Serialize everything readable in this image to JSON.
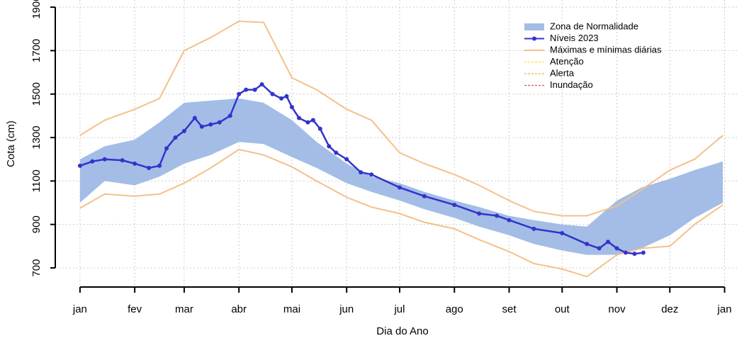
{
  "chart_data": {
    "type": "line",
    "x_label": "Dia do Ano",
    "y_label": "Cota (cm)",
    "xlim": [
      -13,
      373
    ],
    "ylim": [
      612,
      1933
    ],
    "xticks": [
      {
        "value": 1,
        "label": "jan"
      },
      {
        "value": 32,
        "label": "fev"
      },
      {
        "value": 60,
        "label": "mar"
      },
      {
        "value": 91,
        "label": "abr"
      },
      {
        "value": 121,
        "label": "mai"
      },
      {
        "value": 152,
        "label": "jun"
      },
      {
        "value": 182,
        "label": "jul"
      },
      {
        "value": 213,
        "label": "ago"
      },
      {
        "value": 244,
        "label": "set"
      },
      {
        "value": 274,
        "label": "out"
      },
      {
        "value": 305,
        "label": "nov"
      },
      {
        "value": 335,
        "label": "dez"
      },
      {
        "value": 366,
        "label": "jan"
      }
    ],
    "yticks": [
      700,
      900,
      1100,
      1300,
      1500,
      1700,
      1900
    ],
    "grid": true,
    "legend": "top-right",
    "x": [
      1,
      15,
      32,
      46,
      60,
      75,
      91,
      105,
      121,
      135,
      152,
      166,
      182,
      196,
      213,
      227,
      244,
      258,
      274,
      288,
      305,
      319,
      335,
      349,
      365
    ],
    "band": {
      "name": "Zona de Normalidade",
      "color": "#a3bde6",
      "high": [
        1200,
        1260,
        1290,
        1370,
        1460,
        1470,
        1480,
        1460,
        1380,
        1280,
        1180,
        1120,
        1090,
        1050,
        1010,
        980,
        940,
        920,
        900,
        890,
        1010,
        1070,
        1110,
        1150,
        1190
      ],
      "low": [
        1000,
        1100,
        1080,
        1120,
        1180,
        1220,
        1280,
        1270,
        1210,
        1160,
        1090,
        1050,
        1010,
        970,
        930,
        890,
        850,
        810,
        780,
        760,
        760,
        790,
        850,
        930,
        1000
      ]
    },
    "extremes": {
      "name": "Máximas e mínimas diárias",
      "color": "#f5c08a",
      "max": [
        1310,
        1380,
        1430,
        1480,
        1700,
        1760,
        1835,
        1830,
        1575,
        1520,
        1430,
        1380,
        1230,
        1180,
        1130,
        1080,
        1010,
        960,
        940,
        940,
        985,
        1060,
        1150,
        1200,
        1310
      ],
      "min": [
        975,
        1040,
        1030,
        1040,
        1090,
        1160,
        1245,
        1220,
        1165,
        1100,
        1025,
        980,
        950,
        910,
        880,
        830,
        775,
        720,
        695,
        660,
        760,
        790,
        800,
        900,
        990
      ]
    },
    "series": [
      {
        "name": "Níveis 2023",
        "color": "#3333cc",
        "x": [
          1,
          8,
          15,
          25,
          32,
          40,
          46,
          50,
          55,
          60,
          66,
          70,
          75,
          80,
          86,
          91,
          95,
          100,
          104,
          110,
          115,
          118,
          121,
          125,
          130,
          133,
          137,
          142,
          146,
          152,
          160,
          166,
          182,
          196,
          213,
          227,
          237,
          244,
          258,
          274,
          288,
          295,
          300,
          305,
          310,
          315,
          320
        ],
        "values": [
          1170,
          1190,
          1200,
          1195,
          1180,
          1160,
          1170,
          1250,
          1300,
          1330,
          1390,
          1350,
          1360,
          1370,
          1400,
          1500,
          1520,
          1520,
          1545,
          1500,
          1480,
          1490,
          1440,
          1390,
          1370,
          1380,
          1340,
          1260,
          1230,
          1200,
          1140,
          1130,
          1070,
          1030,
          990,
          950,
          940,
          920,
          880,
          860,
          810,
          790,
          820,
          790,
          770,
          765,
          770
        ]
      }
    ],
    "reference_lines": [
      {
        "name": "Atenção",
        "color": "#f0e040"
      },
      {
        "name": "Alerta",
        "color": "#f0b050"
      },
      {
        "name": "Inundação",
        "color": "#e05050"
      }
    ]
  }
}
